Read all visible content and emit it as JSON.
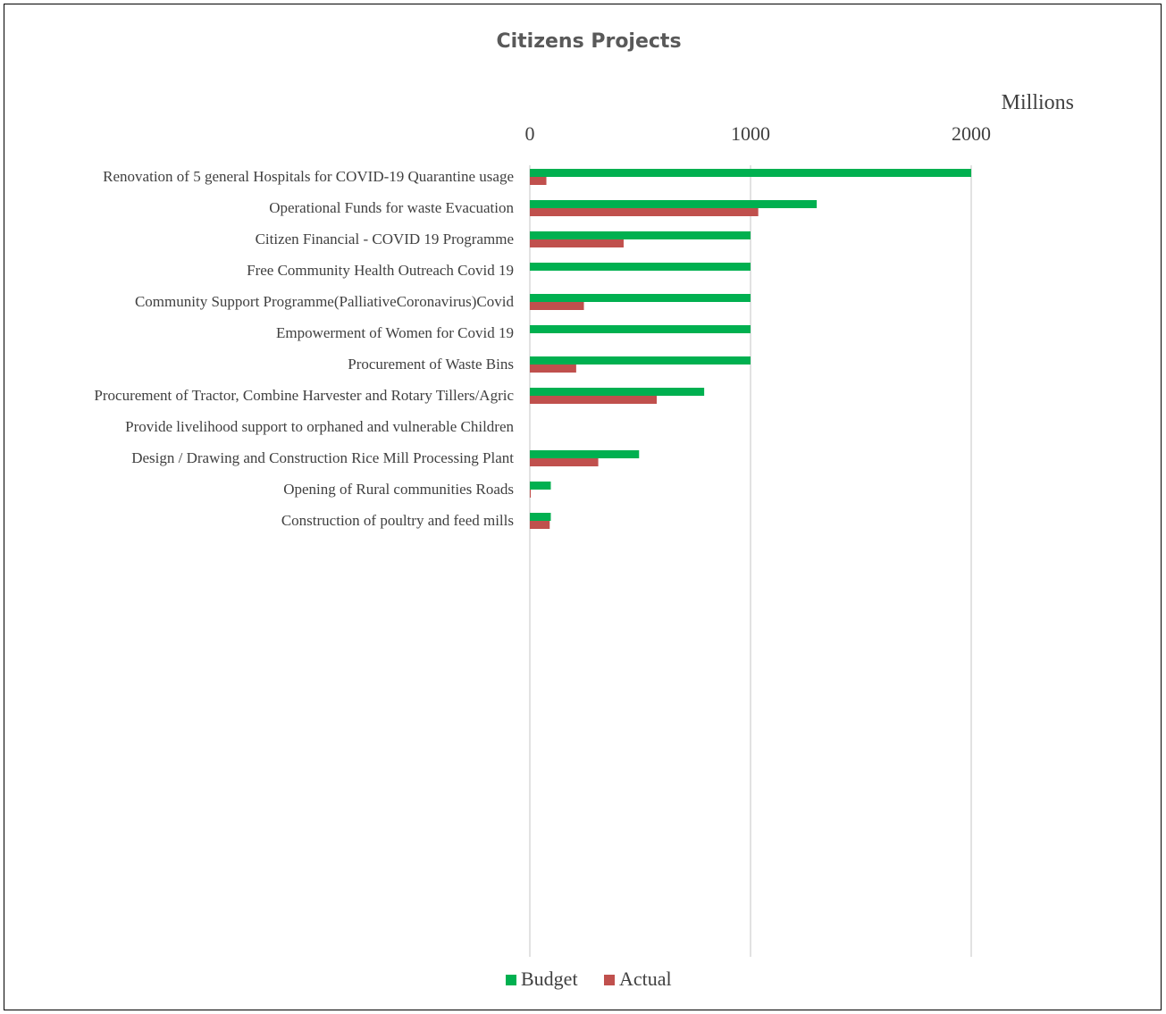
{
  "chart_data": {
    "type": "bar",
    "orientation": "horizontal",
    "title": "Citizens Projects",
    "display_unit": "Millions",
    "xlim": [
      0,
      2000
    ],
    "xticks": [
      0,
      1000,
      2000
    ],
    "grid": true,
    "legend_position": "bottom",
    "categories": [
      "Renovation of 5 general Hospitals for COVID-19 Quarantine usage",
      "Operational Funds for waste Evacuation",
      "Citizen Financial  - COVID 19 Programme",
      "Free Community Health Outreach Covid 19",
      "Community Support Programme(PalliativeCoronavirus)Covid",
      "Empowerment of Women for Covid 19",
      "Procurement of Waste Bins",
      "Procurement of Tractor, Combine Harvester and Rotary Tillers/Agric",
      "Provide livelihood support to orphaned and vulnerable Children",
      "Design / Drawing and Construction Rice Mill Processing Plant",
      "Opening of Rural communities Roads",
      "Construction of poultry and feed mills"
    ],
    "series": [
      {
        "name": "Budget",
        "color": "#00b050",
        "values": [
          2000,
          1300,
          1000,
          1000,
          1000,
          1000,
          1000,
          790,
          0,
          495,
          95,
          95
        ]
      },
      {
        "name": "Actual",
        "color": "#c0504d",
        "values": [
          75,
          1035,
          425,
          0,
          245,
          0,
          210,
          575,
          0,
          310,
          3,
          90
        ]
      }
    ]
  }
}
